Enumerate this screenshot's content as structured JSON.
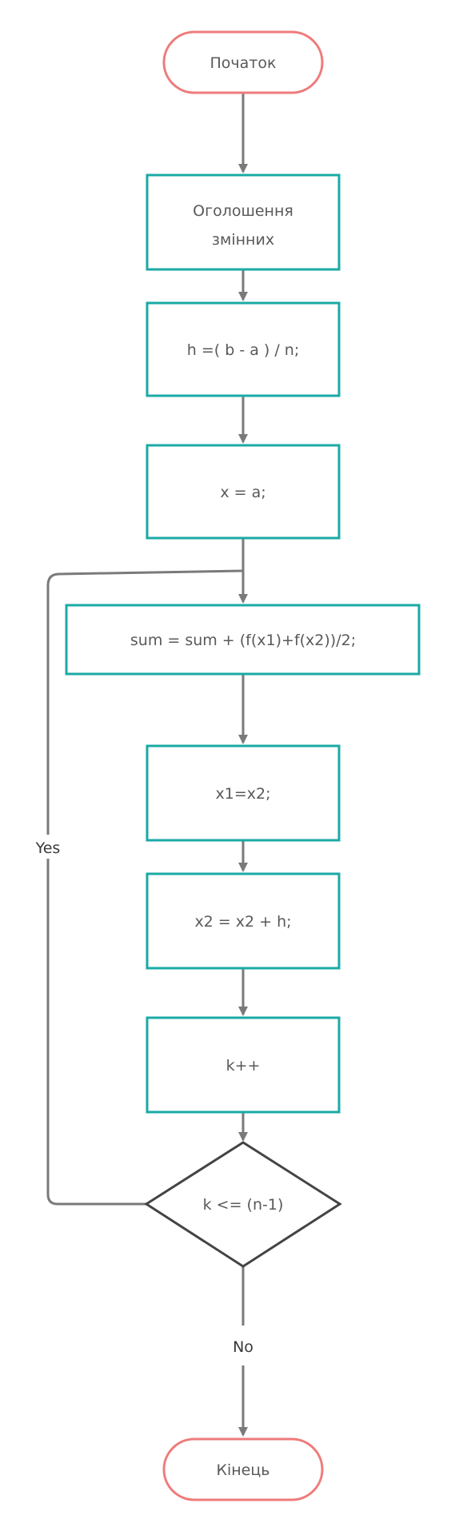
{
  "colors": {
    "terminal_border": "#ef7b7b",
    "process_border": "#1aaaa5",
    "decision_border": "#444444",
    "connector": "#7a7a7a",
    "text": "#595959"
  },
  "nodes": {
    "start": {
      "label": "Початок"
    },
    "declare_vars": {
      "line1": "Оголошення",
      "line2": "змінних"
    },
    "compute_h": {
      "label": "h =( b - a ) / n;"
    },
    "assign_x": {
      "label": "x = a;"
    },
    "sum_update": {
      "label": "sum = sum + (f(x1)+f(x2))/2;"
    },
    "x1_assign": {
      "label": "x1=x2;"
    },
    "x2_update": {
      "label": "x2 = x2 + h;"
    },
    "k_increment": {
      "label": "k++"
    },
    "condition": {
      "label": "k <= (n-1)"
    },
    "end": {
      "label": "Кінець"
    }
  },
  "edges": {
    "yes_label": "Yes",
    "no_label": "No"
  }
}
